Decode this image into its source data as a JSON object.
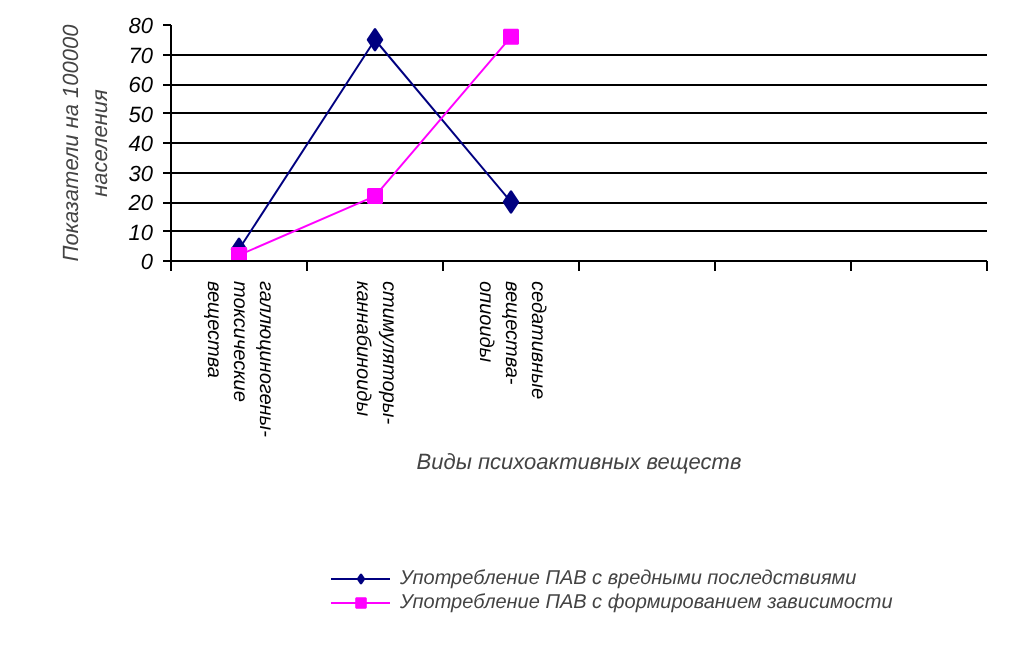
{
  "chart_data": {
    "type": "line",
    "xlabel": "Виды психоактивных веществ",
    "ylabel": "Показатели на 100000 населения",
    "categories": [
      "галлюциногены-токсические вещества",
      "стимуляторы-каннабиноиды",
      "седативные вещества-опиоиды",
      null,
      null,
      null
    ],
    "ylim": [
      0,
      80
    ],
    "yticks": [
      0,
      10,
      20,
      30,
      40,
      50,
      60,
      70,
      80
    ],
    "grid": "y",
    "legend": "bottom",
    "series": [
      {
        "name": "Употребление ПАВ с вредными последствиями",
        "color": "#000080",
        "marker": "diamond",
        "values": [
          4,
          75,
          20,
          null,
          null,
          null
        ]
      },
      {
        "name": "Употребление ПАВ с формированием зависимости",
        "color": "#ff00ff",
        "marker": "square",
        "values": [
          2,
          22,
          76,
          null,
          null,
          null
        ]
      }
    ]
  }
}
